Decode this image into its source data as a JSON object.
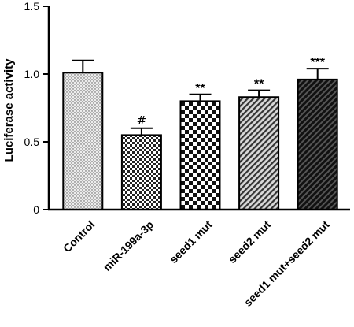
{
  "chart_data": {
    "type": "bar",
    "title": "",
    "xlabel": "",
    "ylabel": "Luciferase activity",
    "ylim": [
      0,
      1.5
    ],
    "yticks": [
      "0",
      "0.5",
      "1.0",
      "1.5"
    ],
    "categories": [
      "Control",
      "miR-199a-3p",
      "seed1 mut",
      "seed2 mut",
      "seed1 mut+seed2 mut"
    ],
    "values": [
      1.01,
      0.55,
      0.8,
      0.83,
      0.96
    ],
    "errors": [
      0.09,
      0.05,
      0.05,
      0.05,
      0.08
    ],
    "significance": [
      "",
      "#",
      "**",
      "**",
      "***"
    ],
    "patterns": [
      "dots-light",
      "checker-fine",
      "checker-coarse",
      "stripes",
      "stripes-dark"
    ],
    "grid": false,
    "legend": "none"
  }
}
